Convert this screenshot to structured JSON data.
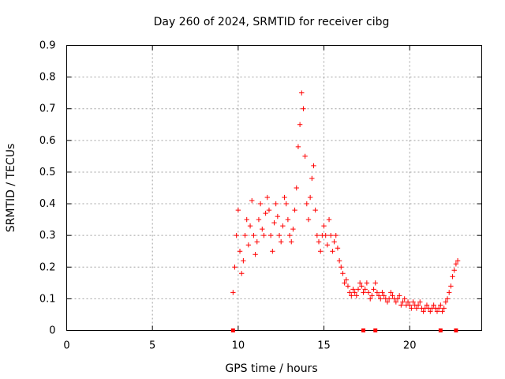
{
  "chart_data": {
    "type": "scatter",
    "title": "Day 260 of 2024, SRMTID for receiver cibg",
    "xlabel": "GPS time / hours",
    "ylabel": "SRMTID / TECUs",
    "xlim": [
      0,
      24.2
    ],
    "ylim": [
      0,
      0.9
    ],
    "xticks": [
      0,
      5,
      10,
      15,
      20
    ],
    "xtick_labels": [
      "0",
      "5",
      "10",
      "15",
      "20"
    ],
    "yticks": [
      0,
      0.1,
      0.2,
      0.3,
      0.4,
      0.5,
      0.6,
      0.7,
      0.8,
      0.9
    ],
    "ytick_labels": [
      "0",
      "0.1",
      "0.2",
      "0.3",
      "0.4",
      "0.5",
      "0.6",
      "0.7",
      "0.8",
      "0.9"
    ],
    "grid": true,
    "marker": "+",
    "color": "#ff0000",
    "baseline_markers_x": [
      9.7,
      17.3,
      18.0,
      21.8,
      22.7
    ],
    "series": [
      {
        "name": "SRMTID",
        "x": [
          9.7,
          9.8,
          9.9,
          10.0,
          10.1,
          10.2,
          10.3,
          10.4,
          10.5,
          10.6,
          10.7,
          10.8,
          10.9,
          11.0,
          11.1,
          11.2,
          11.3,
          11.4,
          11.5,
          11.6,
          11.7,
          11.8,
          11.9,
          12.0,
          12.1,
          12.2,
          12.3,
          12.4,
          12.5,
          12.6,
          12.7,
          12.8,
          12.9,
          13.0,
          13.1,
          13.2,
          13.3,
          13.4,
          13.5,
          13.6,
          13.7,
          13.8,
          13.9,
          14.0,
          14.1,
          14.2,
          14.3,
          14.4,
          14.5,
          14.6,
          14.7,
          14.8,
          14.9,
          15.0,
          15.1,
          15.2,
          15.3,
          15.4,
          15.5,
          15.6,
          15.7,
          15.8,
          15.9,
          16.0,
          16.1,
          16.2,
          16.3,
          16.4,
          16.5,
          16.6,
          16.7,
          16.8,
          16.9,
          17.0,
          17.1,
          17.2,
          17.3,
          17.4,
          17.5,
          17.6,
          17.7,
          17.8,
          17.9,
          18.0,
          18.1,
          18.2,
          18.3,
          18.4,
          18.5,
          18.6,
          18.7,
          18.8,
          18.9,
          19.0,
          19.1,
          19.2,
          19.3,
          19.4,
          19.5,
          19.6,
          19.7,
          19.8,
          19.9,
          20.0,
          20.1,
          20.2,
          20.3,
          20.4,
          20.5,
          20.6,
          20.7,
          20.8,
          20.9,
          21.0,
          21.1,
          21.2,
          21.3,
          21.4,
          21.5,
          21.6,
          21.7,
          21.8,
          21.9,
          22.0,
          22.1,
          22.2,
          22.3,
          22.4,
          22.5,
          22.6,
          22.7,
          22.8
        ],
        "y": [
          0.12,
          0.2,
          0.3,
          0.38,
          0.25,
          0.18,
          0.22,
          0.3,
          0.35,
          0.27,
          0.33,
          0.41,
          0.3,
          0.24,
          0.28,
          0.35,
          0.4,
          0.32,
          0.3,
          0.37,
          0.42,
          0.38,
          0.3,
          0.25,
          0.34,
          0.4,
          0.36,
          0.3,
          0.28,
          0.33,
          0.42,
          0.4,
          0.35,
          0.3,
          0.28,
          0.32,
          0.38,
          0.45,
          0.58,
          0.65,
          0.75,
          0.7,
          0.55,
          0.4,
          0.35,
          0.42,
          0.48,
          0.52,
          0.38,
          0.3,
          0.28,
          0.25,
          0.3,
          0.33,
          0.3,
          0.27,
          0.35,
          0.3,
          0.25,
          0.28,
          0.3,
          0.26,
          0.22,
          0.2,
          0.18,
          0.15,
          0.16,
          0.14,
          0.12,
          0.11,
          0.13,
          0.12,
          0.11,
          0.13,
          0.15,
          0.14,
          0.12,
          0.13,
          0.15,
          0.12,
          0.1,
          0.11,
          0.13,
          0.15,
          0.12,
          0.11,
          0.1,
          0.12,
          0.11,
          0.1,
          0.09,
          0.1,
          0.12,
          0.11,
          0.1,
          0.09,
          0.1,
          0.11,
          0.08,
          0.09,
          0.1,
          0.08,
          0.09,
          0.08,
          0.07,
          0.09,
          0.08,
          0.07,
          0.08,
          0.09,
          0.07,
          0.06,
          0.07,
          0.08,
          0.07,
          0.06,
          0.07,
          0.08,
          0.07,
          0.06,
          0.07,
          0.08,
          0.06,
          0.07,
          0.09,
          0.1,
          0.12,
          0.14,
          0.17,
          0.19,
          0.21,
          0.22
        ]
      }
    ]
  }
}
